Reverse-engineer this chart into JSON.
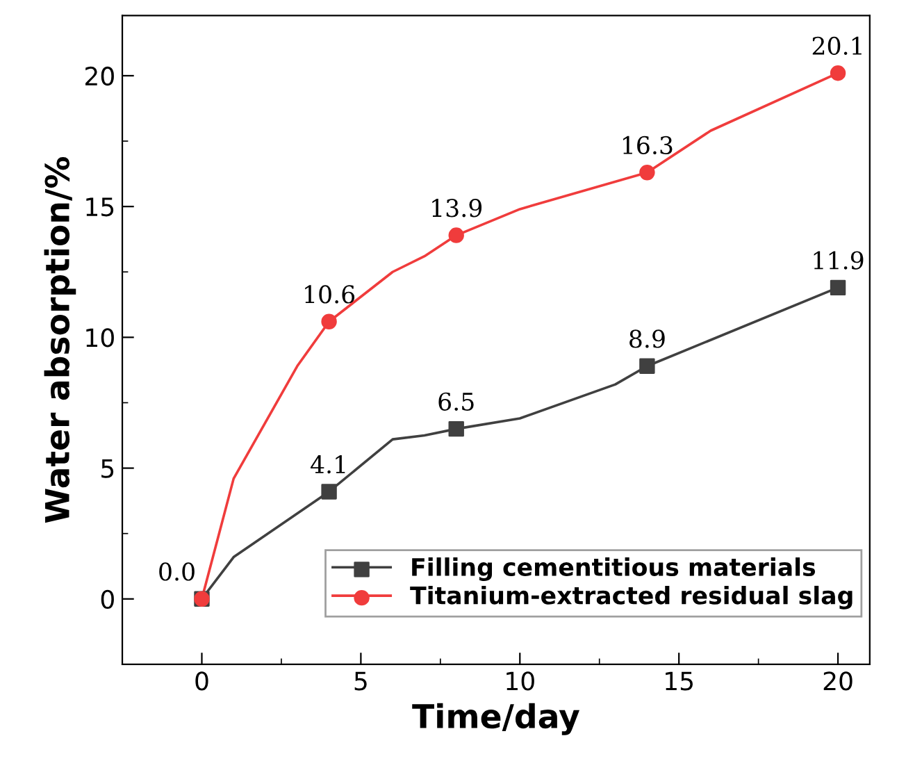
{
  "chart_data": {
    "type": "line",
    "xlabel": "Time/day",
    "ylabel": "Water absorption/%",
    "xlim": [
      -2.5,
      21
    ],
    "xticks": [
      0,
      5,
      10,
      15,
      20
    ],
    "ylim": [
      -2.5,
      22.3
    ],
    "yticks": [
      0,
      5,
      10,
      15,
      20
    ],
    "grid": false,
    "legend": "bottom right",
    "series": [
      {
        "color": "#404040",
        "marker": "none",
        "x": [
          0,
          1,
          4,
          6,
          7,
          8,
          10,
          13,
          14,
          20
        ],
        "values": [
          0.0,
          1.6,
          4.1,
          6.1,
          6.25,
          6.5,
          6.9,
          8.2,
          8.9,
          11.9
        ]
      },
      {
        "type": "scatter",
        "name": "Filling cementitious materials",
        "color": "#404040",
        "marker": "square",
        "x": [
          0,
          4,
          8,
          14,
          20
        ],
        "values": [
          0.0,
          4.1,
          6.5,
          8.9,
          11.9
        ],
        "value_labels": [
          "0.0",
          "4.1",
          "6.5",
          "8.9",
          "11.9"
        ]
      },
      {
        "color": "#f03c3c",
        "marker": "none",
        "x": [
          0,
          1,
          3,
          4,
          6,
          7,
          8,
          10,
          14,
          16,
          20
        ],
        "values": [
          0.0,
          4.6,
          8.9,
          10.6,
          12.5,
          13.1,
          13.9,
          14.9,
          16.3,
          17.9,
          20.1
        ]
      },
      {
        "type": "scatter",
        "name": "Titanium-extracted residual slag",
        "color": "#f03c3c",
        "marker": "circle",
        "x": [
          0,
          4,
          8,
          14,
          20
        ],
        "values": [
          0.0,
          10.6,
          13.9,
          16.3,
          20.1
        ],
        "value_labels": [
          null,
          "10.6",
          "13.9",
          "16.3",
          "20.1"
        ]
      }
    ]
  }
}
